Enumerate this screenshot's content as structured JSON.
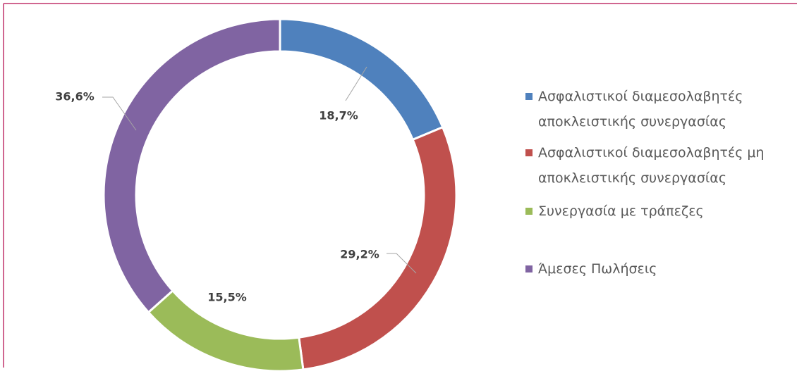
{
  "chart_data": {
    "type": "donut",
    "categories": [
      "Ασφαλιστικοί διαμεσολαβητές αποκλειστικής συνεργασίας",
      "Ασφαλιστικοί διαμεσολαβητές μη αποκλειστικής συνεργασίας",
      "Συνεργασία με τράπεζες",
      "Άμεσες Πωλήσεις"
    ],
    "values": [
      18.7,
      29.2,
      15.5,
      36.6
    ],
    "value_labels": [
      "18,7%",
      "29,2%",
      "15,5%",
      "36,6%"
    ],
    "colors": [
      "#4f81bd",
      "#c0504d",
      "#9bbb59",
      "#8064a2"
    ],
    "legend": "right"
  }
}
